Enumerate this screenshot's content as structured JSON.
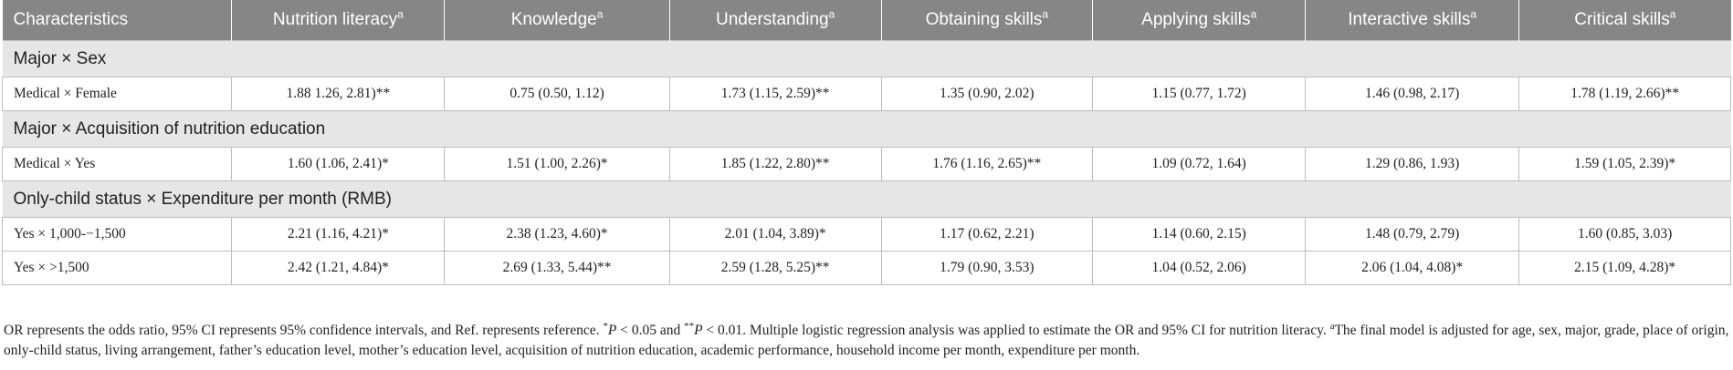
{
  "table": {
    "headers": [
      {
        "label": "Characteristics",
        "sup": ""
      },
      {
        "label": "Nutrition literacy",
        "sup": "a"
      },
      {
        "label": "Knowledge",
        "sup": "a"
      },
      {
        "label": "Understanding",
        "sup": "a"
      },
      {
        "label": "Obtaining skills",
        "sup": "a"
      },
      {
        "label": "Applying skills",
        "sup": "a"
      },
      {
        "label": "Interactive skills",
        "sup": "a"
      },
      {
        "label": "Critical skills",
        "sup": "a"
      }
    ],
    "groups": [
      {
        "title": "Major × Sex",
        "rows": [
          [
            "Medical × Female",
            "1.88 1.26, 2.81)**",
            "0.75 (0.50, 1.12)",
            "1.73 (1.15, 2.59)**",
            "1.35 (0.90, 2.02)",
            "1.15 (0.77, 1.72)",
            "1.46 (0.98, 2.17)",
            "1.78 (1.19, 2.66)**"
          ]
        ]
      },
      {
        "title": "Major × Acquisition of nutrition education",
        "rows": [
          [
            "Medical × Yes",
            "1.60 (1.06, 2.41)*",
            "1.51 (1.00, 2.26)*",
            "1.85 (1.22, 2.80)**",
            "1.76 (1.16, 2.65)**",
            "1.09 (0.72, 1.64)",
            "1.29 (0.86, 1.93)",
            "1.59 (1.05, 2.39)*"
          ]
        ]
      },
      {
        "title": "Only-child status × Expenditure per month (RMB)",
        "rows": [
          [
            "Yes × 1,000-−1,500",
            "2.21 (1.16, 4.21)*",
            "2.38 (1.23, 4.60)*",
            "2.01 (1.04, 3.89)*",
            "1.17 (0.62, 2.21)",
            "1.14 (0.60, 2.15)",
            "1.48 (0.79, 2.79)",
            "1.60 (0.85, 3.03)"
          ],
          [
            "Yes × >1,500",
            "2.42 (1.21, 4.84)*",
            "2.69 (1.33, 5.44)**",
            "2.59 (1.28, 5.25)**",
            "1.79 (0.90, 3.53)",
            "1.04 (0.52, 2.06)",
            "2.06 (1.04, 4.08)*",
            "2.15 (1.09, 4.28)*"
          ]
        ]
      }
    ]
  },
  "footnote": {
    "part1": "OR represents the odds ratio, 95% CI represents 95% confidence intervals, and Ref. represents reference. ",
    "star1": "*",
    "p1": "P",
    "part2": " < 0.05 and ",
    "star2": "**",
    "p2": "P",
    "part3": " < 0.01. Multiple logistic regression analysis was applied to estimate the OR and 95% CI for nutrition literacy. ",
    "sup_a": "a",
    "part4": "The final model is adjusted for age, sex, major, grade, place of origin, only-child status, living arrangement, father’s education level, mother’s education level, acquisition of nutrition education, academic performance, household income per month, expenditure per month."
  }
}
